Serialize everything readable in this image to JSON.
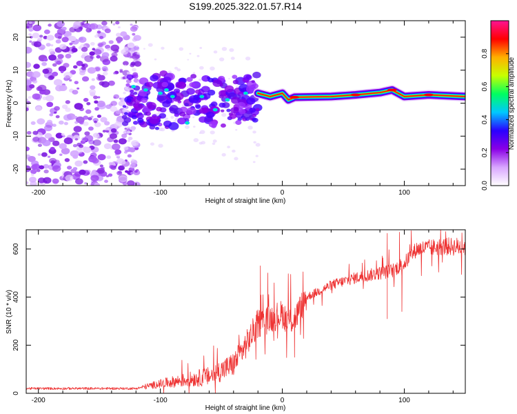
{
  "title": "S199.2025.322.01.57.R14",
  "chart_data": [
    {
      "type": "heatmap",
      "xlabel": "Height of straight line (km)",
      "ylabel": "Frequency (Hz)",
      "xlim": [
        -210,
        150
      ],
      "ylim": [
        -25,
        25
      ],
      "x_ticks": [
        -200,
        -100,
        0,
        100
      ],
      "y_ticks": [
        -20,
        -10,
        0,
        10,
        20
      ],
      "colorbar": {
        "label": "Normalized spectral amplitude",
        "range": [
          0,
          1
        ],
        "ticks": [
          "0.0",
          "0.2",
          "0.4",
          "0.6",
          "0.8"
        ],
        "colors": [
          "#ffffff",
          "#d9a6ff",
          "#8a00e6",
          "#2a00ff",
          "#00c8ff",
          "#00ff60",
          "#c8ff00",
          "#ffb000",
          "#ff0000",
          "#ff1493"
        ]
      },
      "regions": [
        {
          "name": "noise",
          "x_range": [
            -210,
            -130
          ],
          "freq_range": [
            -25,
            25
          ],
          "amplitude": 0.08
        },
        {
          "name": "emerging-signal",
          "x_range": [
            -130,
            -20
          ],
          "freq_range": [
            -10,
            10
          ],
          "amplitude": 0.18
        },
        {
          "name": "carrier-line",
          "x_range": [
            -20,
            150
          ],
          "center_freq": 2,
          "amplitude": 0.9
        }
      ],
      "line_points": [
        {
          "x": -20,
          "f": 3
        },
        {
          "x": -10,
          "f": 2
        },
        {
          "x": 0,
          "f": 3
        },
        {
          "x": 5,
          "f": 1
        },
        {
          "x": 10,
          "f": 1.8
        },
        {
          "x": 40,
          "f": 2
        },
        {
          "x": 60,
          "f": 2.5
        },
        {
          "x": 80,
          "f": 3.2
        },
        {
          "x": 90,
          "f": 4
        },
        {
          "x": 100,
          "f": 2
        },
        {
          "x": 120,
          "f": 2.5
        },
        {
          "x": 150,
          "f": 2
        }
      ]
    },
    {
      "type": "line",
      "xlabel": "Height of straight line (km)",
      "ylabel": "SNR (10 * v/v)",
      "xlim": [
        -210,
        150
      ],
      "ylim": [
        0,
        680
      ],
      "x_ticks": [
        -200,
        -100,
        0,
        100
      ],
      "y_ticks": [
        0,
        200,
        400,
        600
      ],
      "color": "#ee3333",
      "trend": [
        {
          "x": -210,
          "y": 20
        },
        {
          "x": -120,
          "y": 20
        },
        {
          "x": -100,
          "y": 40
        },
        {
          "x": -60,
          "y": 70
        },
        {
          "x": -40,
          "y": 120
        },
        {
          "x": -30,
          "y": 200
        },
        {
          "x": -20,
          "y": 290
        },
        {
          "x": -10,
          "y": 310
        },
        {
          "x": 0,
          "y": 330
        },
        {
          "x": 5,
          "y": 300
        },
        {
          "x": 10,
          "y": 310
        },
        {
          "x": 20,
          "y": 400
        },
        {
          "x": 40,
          "y": 450
        },
        {
          "x": 60,
          "y": 480
        },
        {
          "x": 80,
          "y": 500
        },
        {
          "x": 90,
          "y": 510
        },
        {
          "x": 100,
          "y": 540
        },
        {
          "x": 110,
          "y": 600
        },
        {
          "x": 130,
          "y": 610
        },
        {
          "x": 150,
          "y": 610
        }
      ],
      "peaks": [
        {
          "x": -18,
          "y": 530
        },
        {
          "x": -12,
          "y": 500
        },
        {
          "x": 17,
          "y": 505
        },
        {
          "x": 86,
          "y": 665
        },
        {
          "x": 96,
          "y": 670
        }
      ],
      "troughs": [
        {
          "x": 10,
          "y": 150
        },
        {
          "x": 86,
          "y": 310
        },
        {
          "x": 98,
          "y": 340
        }
      ]
    }
  ]
}
